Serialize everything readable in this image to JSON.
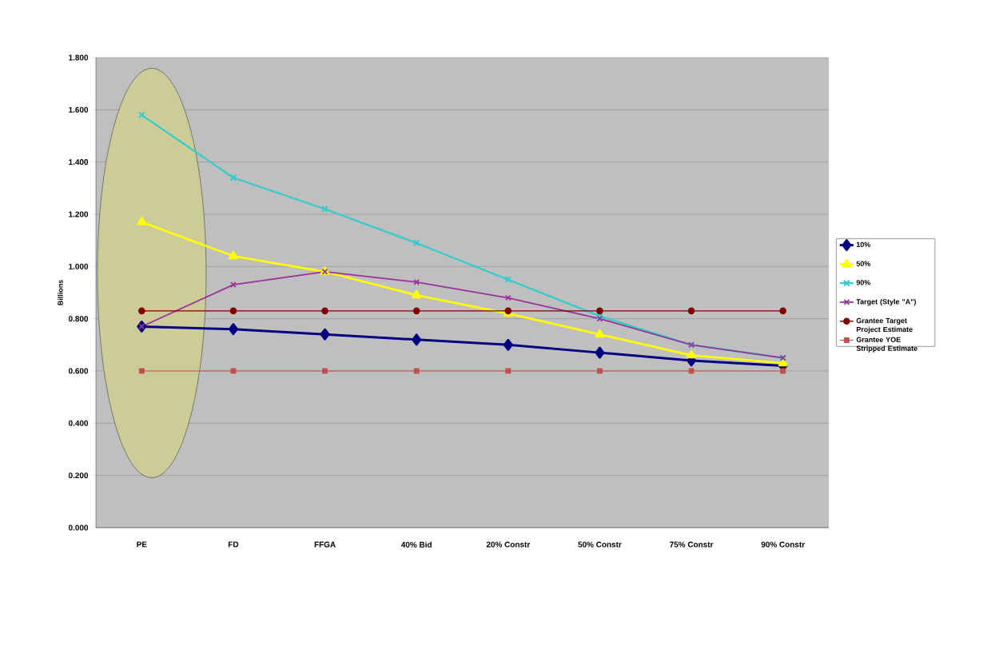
{
  "chart_data": {
    "type": "line",
    "ylabel": "Billions",
    "categories": [
      "PE",
      "FD",
      "FFGA",
      "40% Bid",
      "20% Constr",
      "50% Constr",
      "75% Constr",
      "90% Constr"
    ],
    "ylim": [
      0,
      1.8
    ],
    "yticks": [
      {
        "value": 0,
        "label": "0.000"
      },
      {
        "value": 0.2,
        "label": "0.200"
      },
      {
        "value": 0.4,
        "label": "0.400"
      },
      {
        "value": 0.6,
        "label": "0.600"
      },
      {
        "value": 0.8,
        "label": "0.800"
      },
      {
        "value": 1.0,
        "label": "1.000"
      },
      {
        "value": 1.2,
        "label": "1.200"
      },
      {
        "value": 1.4,
        "label": "1.400"
      },
      {
        "value": 1.6,
        "label": "1.600"
      },
      {
        "value": 1.8,
        "label": "1.800"
      }
    ],
    "grid": "y",
    "legend": "right",
    "series": [
      {
        "name": "10%",
        "color": "#000080",
        "marker": "diamond",
        "values": [
          0.77,
          0.76,
          0.74,
          0.72,
          0.7,
          0.67,
          0.64,
          0.62
        ]
      },
      {
        "name": "50%",
        "color": "#ffff00",
        "marker": "triangle",
        "values": [
          1.17,
          1.04,
          0.98,
          0.89,
          0.82,
          0.74,
          0.66,
          0.63
        ]
      },
      {
        "name": "90%",
        "color": "#33cccc",
        "marker": "cross",
        "values": [
          1.58,
          1.34,
          1.22,
          1.09,
          0.95,
          0.81,
          0.7,
          0.65
        ]
      },
      {
        "name": "Target (Style \"A\")",
        "color": "#993399",
        "marker": "cross",
        "values": [
          0.77,
          0.93,
          0.98,
          0.94,
          0.88,
          0.8,
          0.7,
          0.65
        ]
      },
      {
        "name": "Grantee Target Project Estimate",
        "color": "#800000",
        "marker": "circle",
        "values": [
          0.83,
          0.83,
          0.83,
          0.83,
          0.83,
          0.83,
          0.83,
          0.83
        ]
      },
      {
        "name": "Grantee YOE Stripped Estimate",
        "color": "#c0504d",
        "marker": "square",
        "values": [
          0.6,
          0.6,
          0.6,
          0.6,
          0.6,
          0.6,
          0.6,
          0.6
        ]
      }
    ]
  }
}
